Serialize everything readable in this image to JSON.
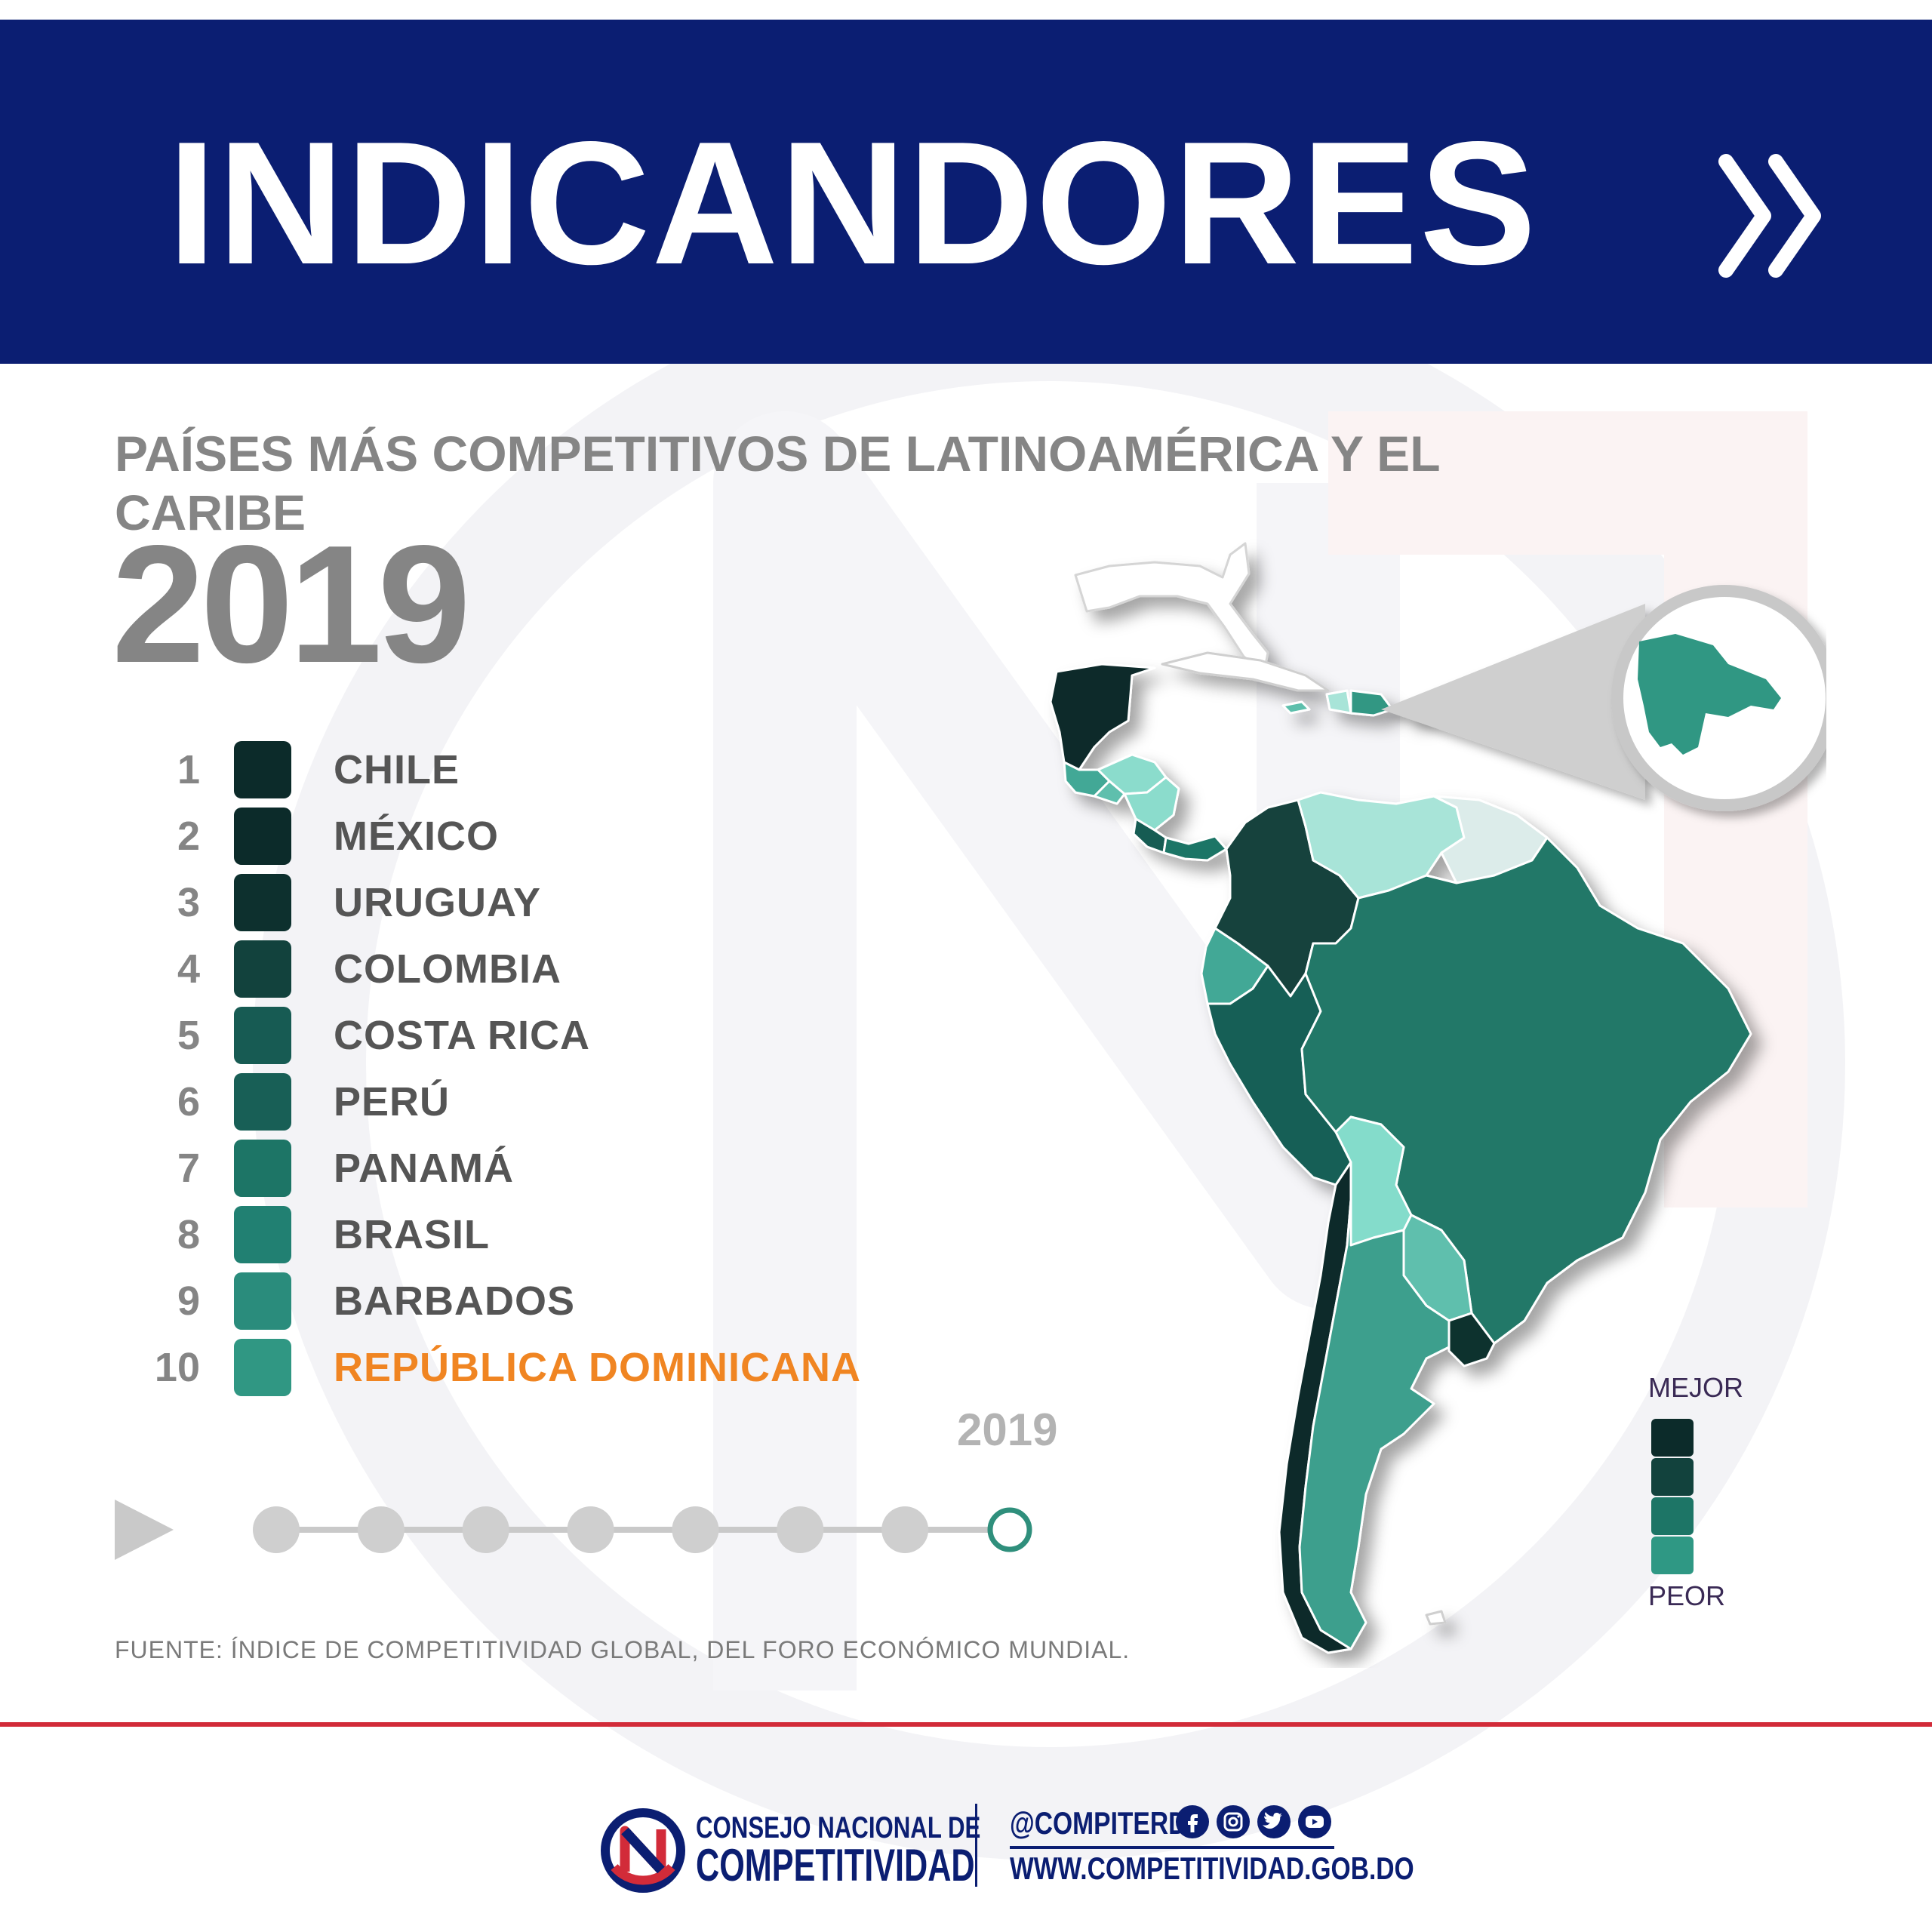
{
  "header": {
    "title": "INDICANDORES",
    "next_icon": "double-chevron-right-icon"
  },
  "chart": {
    "title": "PAÍSES MÁS COMPETITIVOS DE LATINOAMÉRICA Y EL CARIBE",
    "year": "2019"
  },
  "ranking": [
    {
      "rank": "1",
      "country": "CHILE",
      "color": "#0c2b2a"
    },
    {
      "rank": "2",
      "country": "MÉXICO",
      "color": "#0c2b2a"
    },
    {
      "rank": "3",
      "country": "URUGUAY",
      "color": "#0d302e"
    },
    {
      "rank": "4",
      "country": "COLOMBIA",
      "color": "#12423d"
    },
    {
      "rank": "5",
      "country": "COSTA RICA",
      "color": "#175b53"
    },
    {
      "rank": "6",
      "country": "PERÚ",
      "color": "#185f56"
    },
    {
      "rank": "7",
      "country": "PANAMÁ",
      "color": "#1d7566"
    },
    {
      "rank": "8",
      "country": "BRASIL",
      "color": "#218072"
    },
    {
      "rank": "9",
      "country": "BARBADOS",
      "color": "#2a8c7c"
    },
    {
      "rank": "10",
      "country": "REPÚBLICA DOMINICANA",
      "color": "#309783",
      "highlight": true
    }
  ],
  "timeline": {
    "current_year": "2019",
    "play_icon": "play-icon",
    "steps": 8,
    "active_step": 8
  },
  "source": "FUENTE: ÍNDICE DE COMPETITIVIDAD GLOBAL, DEL FORO ECONÓMICO MUNDIAL.",
  "scale": {
    "best_label": "MEJOR",
    "worst_label": "PEOR",
    "colors": [
      "#0c2b2a",
      "#12423d",
      "#1d7566",
      "#2f9884"
    ]
  },
  "footer": {
    "org_line1": "CONSEJO NACIONAL DE",
    "org_line2": "COMPETITIVIDAD",
    "handle": "@COMPITERD",
    "website": "WWW.COMPETITIVIDAD.GOB.DO",
    "social_icons": [
      "facebook-icon",
      "instagram-icon",
      "twitter-icon",
      "youtube-icon"
    ],
    "brand_colors": {
      "blue": "#0b1e72",
      "red": "#d22b39"
    }
  },
  "map_colors": {
    "mexico": "#0c2b2a",
    "central_america_light": "#8bdccc",
    "central_america_mid": "#43a896",
    "costa_rica": "#175b53",
    "panama": "#1d7566",
    "colombia": "#12423d",
    "venezuela": "#a8e4d8",
    "guyanas": "#dcecea",
    "ecuador": "#43a896",
    "peru": "#185f56",
    "brazil": "#247868",
    "bolivia": "#84dccb",
    "paraguay": "#5fbfad",
    "chile": "#0c2b2a",
    "argentina": "#3e9f8d",
    "uruguay": "#0d302e",
    "caribbean": "#5dbfac",
    "dominican_republic": "#309783"
  }
}
